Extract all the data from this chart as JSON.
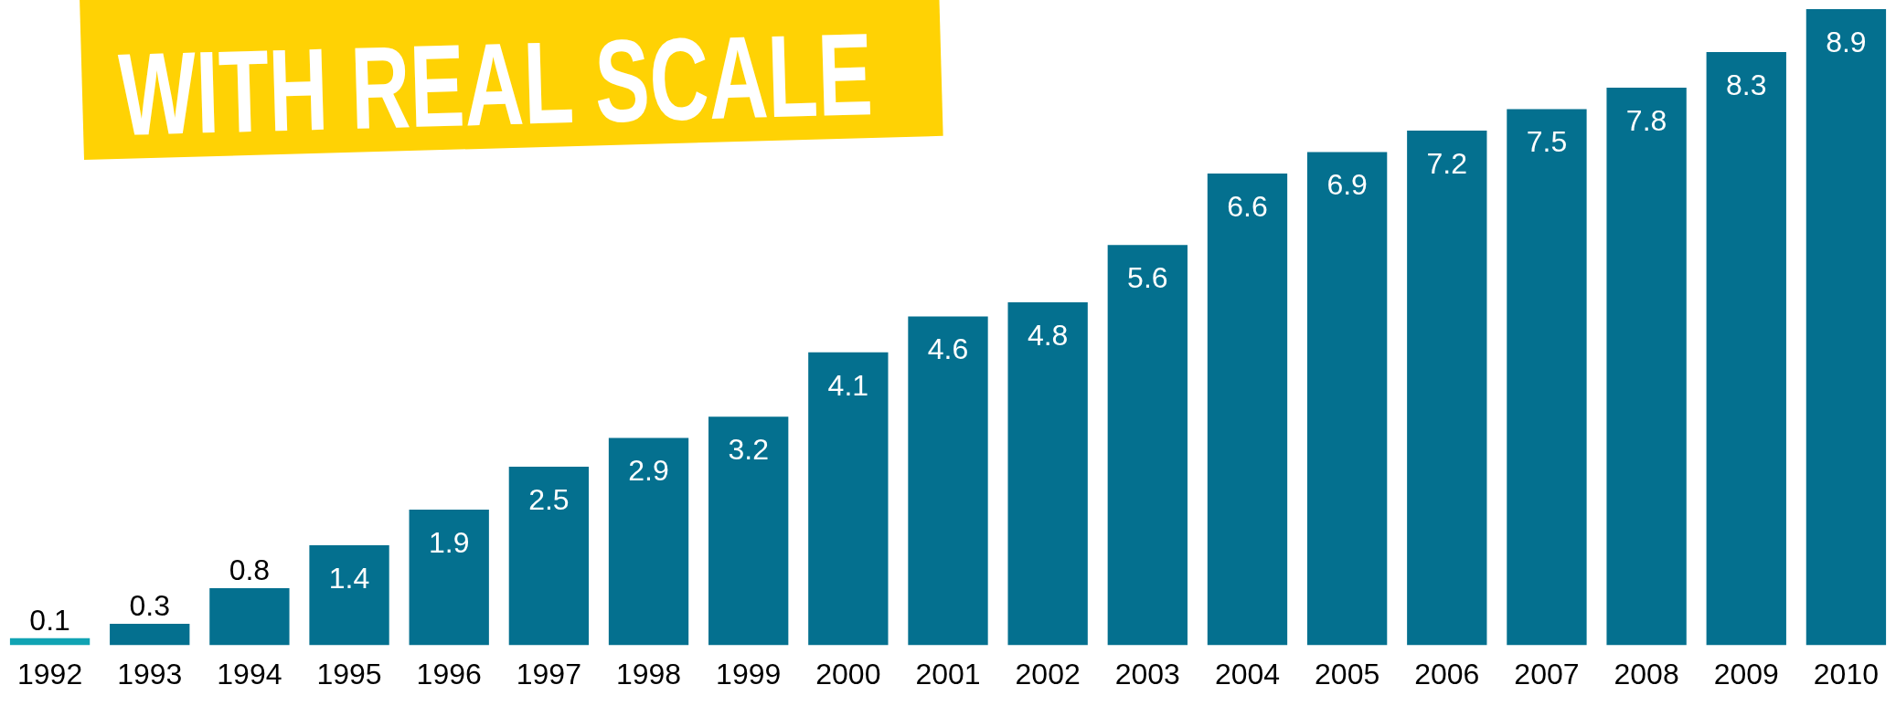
{
  "chart_data": {
    "type": "bar",
    "title": "WITH REAL SCALE",
    "categories": [
      "1992",
      "1993",
      "1994",
      "1995",
      "1996",
      "1997",
      "1998",
      "1999",
      "2000",
      "2001",
      "2002",
      "2003",
      "2004",
      "2005",
      "2006",
      "2007",
      "2008",
      "2009",
      "2010"
    ],
    "values": [
      0.1,
      0.3,
      0.8,
      1.4,
      1.9,
      2.5,
      2.9,
      3.2,
      4.1,
      4.6,
      4.8,
      5.6,
      6.6,
      6.9,
      7.2,
      7.5,
      7.8,
      8.3,
      8.9
    ],
    "colors": [
      "#10a3b3",
      "#04708f",
      "#04708f",
      "#04708f",
      "#04708f",
      "#04708f",
      "#04708f",
      "#04708f",
      "#04708f",
      "#04708f",
      "#04708f",
      "#04708f",
      "#04708f",
      "#04708f",
      "#04708f",
      "#04708f",
      "#04708f",
      "#04708f",
      "#04708f"
    ],
    "data_labels": true,
    "grid": false,
    "legend": false,
    "tick_labels": "x"
  }
}
